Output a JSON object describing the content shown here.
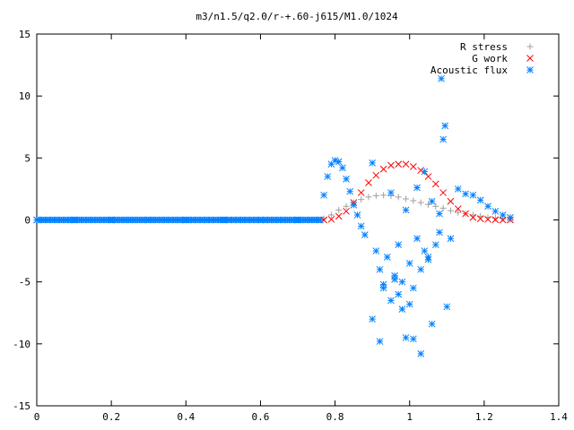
{
  "chart_data": {
    "type": "scatter",
    "title": "m3/n1.5/q2.0/r-+.60-j615/M1.0/1024",
    "xlabel": "",
    "ylabel": "",
    "xlim": [
      0,
      1.4
    ],
    "ylim": [
      -15,
      15
    ],
    "xticks": [
      "0",
      "0.2",
      "0.4",
      "0.6",
      "0.8",
      "1",
      "1.2",
      "1.4"
    ],
    "yticks": [
      "-15",
      "-10",
      "-5",
      "0",
      "5",
      "10",
      "15"
    ],
    "grid": false,
    "legend_position": "top-right",
    "series": [
      {
        "name": "R stress",
        "marker": "plus",
        "color": "#a0a0a0",
        "x": [
          0.77,
          0.79,
          0.81,
          0.83,
          0.85,
          0.87,
          0.89,
          0.91,
          0.93,
          0.95,
          0.97,
          0.99,
          1.01,
          1.03,
          1.05,
          1.07,
          1.09,
          1.11,
          1.13,
          1.15,
          1.17,
          1.19,
          1.21,
          1.23,
          1.25,
          1.27
        ],
        "y": [
          0.1,
          0.4,
          0.8,
          1.1,
          1.4,
          1.65,
          1.85,
          1.95,
          2.0,
          1.95,
          1.85,
          1.7,
          1.55,
          1.4,
          1.25,
          1.1,
          0.95,
          0.75,
          0.6,
          0.5,
          0.4,
          0.3,
          0.2,
          0.15,
          0.1,
          0.05
        ]
      },
      {
        "name": "G work",
        "marker": "cross",
        "color": "#ff0000",
        "x": [
          0.77,
          0.79,
          0.81,
          0.83,
          0.85,
          0.87,
          0.89,
          0.91,
          0.93,
          0.95,
          0.97,
          0.99,
          1.01,
          1.03,
          1.05,
          1.07,
          1.09,
          1.11,
          1.13,
          1.15,
          1.17,
          1.19,
          1.21,
          1.23,
          1.25,
          1.27
        ],
        "y": [
          0.0,
          0.05,
          0.3,
          0.7,
          1.4,
          2.2,
          3.0,
          3.6,
          4.1,
          4.4,
          4.5,
          4.5,
          4.3,
          4.0,
          3.5,
          2.9,
          2.2,
          1.5,
          0.9,
          0.5,
          0.2,
          0.1,
          0.05,
          0.02,
          0.0,
          0.0
        ]
      },
      {
        "name": "Acoustic flux",
        "marker": "star",
        "color": "#0080ff",
        "x": [
          0.0,
          0.1,
          0.2,
          0.3,
          0.4,
          0.5,
          0.6,
          0.7,
          0.76,
          0.77,
          0.78,
          0.79,
          0.8,
          0.81,
          0.82,
          0.83,
          0.84,
          0.85,
          0.86,
          0.87,
          0.88,
          1.13,
          1.15,
          1.17,
          1.19,
          1.21,
          1.23,
          1.25,
          1.27,
          0.9,
          0.91,
          0.92,
          0.93,
          0.94,
          0.95,
          0.96,
          0.97,
          0.98,
          0.99,
          1.0,
          1.01,
          1.02,
          1.03,
          1.04,
          1.05,
          1.06,
          1.07,
          1.08,
          1.09,
          1.1,
          1.11,
          0.9,
          0.95,
          0.99,
          1.02,
          1.04,
          1.085,
          1.095,
          0.92,
          0.97,
          1.0,
          1.03,
          1.06,
          0.93,
          0.96,
          0.98,
          1.01,
          1.05,
          1.08
        ],
        "y": [
          0,
          0,
          0,
          0,
          0,
          0,
          0,
          0,
          0,
          2.0,
          3.5,
          4.5,
          4.8,
          4.7,
          4.2,
          3.3,
          2.3,
          1.2,
          0.4,
          -0.5,
          -1.2,
          2.5,
          2.1,
          2.0,
          1.6,
          1.1,
          0.7,
          0.4,
          0.2,
          -8.0,
          -2.5,
          -4.0,
          -5.5,
          -3.0,
          -6.5,
          -4.5,
          -2.0,
          -5.0,
          -9.5,
          -3.5,
          -5.5,
          -1.5,
          -4.0,
          -2.5,
          -3.0,
          1.5,
          -2.0,
          0.5,
          6.5,
          -7.0,
          -1.5,
          4.6,
          2.2,
          0.8,
          2.6,
          3.9,
          11.4,
          7.6,
          -9.8,
          -6.0,
          -6.8,
          -10.8,
          -8.4,
          -5.2,
          -4.8,
          -7.2,
          -9.6,
          -3.2,
          -1.0
        ]
      }
    ]
  }
}
